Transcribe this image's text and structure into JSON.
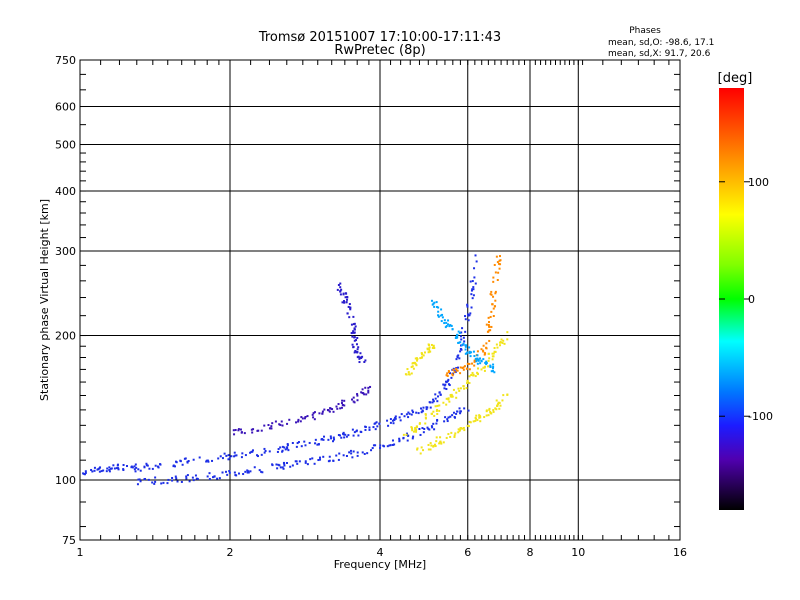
{
  "chart_data": {
    "type": "scatter",
    "title": "Tromsø 20151007 17:10:00-17:11:43",
    "subtitle": "RwPretec (8p)",
    "xlabel": "Frequency [MHz]",
    "ylabel": "Stationary phase Virtual Height [km]",
    "xscale": "log",
    "yscale": "log",
    "xlim": [
      1,
      16
    ],
    "ylim": [
      75,
      750
    ],
    "xticks": [
      1,
      2,
      4,
      6,
      8,
      10,
      16
    ],
    "xtick_labels": [
      "1",
      "2",
      "4",
      "6",
      "8",
      "10",
      "16"
    ],
    "yticks": [
      75,
      100,
      200,
      300,
      400,
      500,
      600,
      750
    ],
    "ytick_labels": [
      "75",
      "100",
      "200",
      "300",
      "400",
      "500",
      "600",
      "750"
    ],
    "grid": true,
    "phases_box": {
      "heading": "Phases",
      "line_o": "mean, sd,O: -98.6, 17.1",
      "line_x": "mean, sd,X:  91.7, 20.6"
    },
    "colorbar": {
      "label": "[deg]",
      "range": [
        -180,
        180
      ],
      "ticks": [
        100,
        0,
        -100
      ],
      "tick_labels": [
        "100",
        "0",
        "-100"
      ]
    },
    "series": [
      {
        "phase_deg": -100,
        "color": "#1c2ee6",
        "trace": [
          [
            1.0,
            104
          ],
          [
            1.1,
            105
          ],
          [
            1.2,
            106
          ],
          [
            1.3,
            106
          ],
          [
            1.5,
            108
          ],
          [
            1.7,
            110
          ],
          [
            2.0,
            112
          ],
          [
            2.3,
            114
          ],
          [
            2.6,
            117
          ],
          [
            3.0,
            120
          ],
          [
            3.3,
            123
          ],
          [
            3.6,
            126
          ],
          [
            4.0,
            130
          ],
          [
            4.4,
            135
          ],
          [
            4.8,
            140
          ],
          [
            5.2,
            148
          ],
          [
            5.5,
            160
          ],
          [
            5.7,
            175
          ],
          [
            5.9,
            200
          ],
          [
            6.1,
            240
          ],
          [
            6.3,
            300
          ]
        ]
      },
      {
        "phase_deg": -100,
        "color": "#1c2ee6",
        "trace": [
          [
            1.3,
            99
          ],
          [
            1.5,
            100
          ],
          [
            1.7,
            101
          ],
          [
            2.0,
            103
          ],
          [
            2.3,
            105
          ],
          [
            2.6,
            107
          ],
          [
            3.0,
            110
          ],
          [
            3.5,
            113
          ],
          [
            4.0,
            117
          ],
          [
            4.5,
            122
          ],
          [
            5.0,
            128
          ],
          [
            5.5,
            135
          ],
          [
            6.0,
            142
          ]
        ]
      },
      {
        "phase_deg": -115,
        "color": "#3a14b8",
        "trace": [
          [
            2.0,
            125
          ],
          [
            2.3,
            128
          ],
          [
            2.6,
            132
          ],
          [
            3.0,
            137
          ],
          [
            3.3,
            142
          ],
          [
            3.6,
            148
          ],
          [
            3.8,
            155
          ]
        ]
      },
      {
        "phase_deg": -110,
        "color": "#2a1ccc",
        "trace": [
          [
            3.3,
            255
          ],
          [
            3.4,
            240
          ],
          [
            3.5,
            220
          ],
          [
            3.55,
            200
          ],
          [
            3.6,
            185
          ],
          [
            3.7,
            175
          ]
        ]
      },
      {
        "phase_deg": 100,
        "color": "#f2e41a",
        "trace": [
          [
            4.5,
            125
          ],
          [
            4.8,
            130
          ],
          [
            5.2,
            140
          ],
          [
            5.6,
            150
          ],
          [
            6.0,
            160
          ],
          [
            6.4,
            170
          ],
          [
            6.8,
            185
          ],
          [
            7.2,
            200
          ]
        ]
      },
      {
        "phase_deg": 100,
        "color": "#f2e41a",
        "trace": [
          [
            4.8,
            115
          ],
          [
            5.2,
            120
          ],
          [
            5.6,
            125
          ],
          [
            6.0,
            130
          ],
          [
            6.4,
            135
          ],
          [
            6.8,
            142
          ],
          [
            7.2,
            150
          ]
        ]
      },
      {
        "phase_deg": 100,
        "color": "#f2e41a",
        "trace": [
          [
            4.5,
            165
          ],
          [
            4.7,
            175
          ],
          [
            4.9,
            185
          ],
          [
            5.1,
            190
          ]
        ]
      },
      {
        "phase_deg": 140,
        "color": "#ff8a00",
        "trace": [
          [
            5.4,
            165
          ],
          [
            5.8,
            170
          ],
          [
            6.2,
            175
          ],
          [
            6.5,
            190
          ],
          [
            6.7,
            220
          ],
          [
            6.8,
            260
          ],
          [
            6.9,
            290
          ]
        ]
      },
      {
        "phase_deg": -60,
        "color": "#00a6ff",
        "trace": [
          [
            5.0,
            240
          ],
          [
            5.3,
            220
          ],
          [
            5.6,
            205
          ],
          [
            5.9,
            190
          ],
          [
            6.2,
            180
          ],
          [
            6.5,
            175
          ],
          [
            6.8,
            170
          ]
        ]
      }
    ]
  }
}
